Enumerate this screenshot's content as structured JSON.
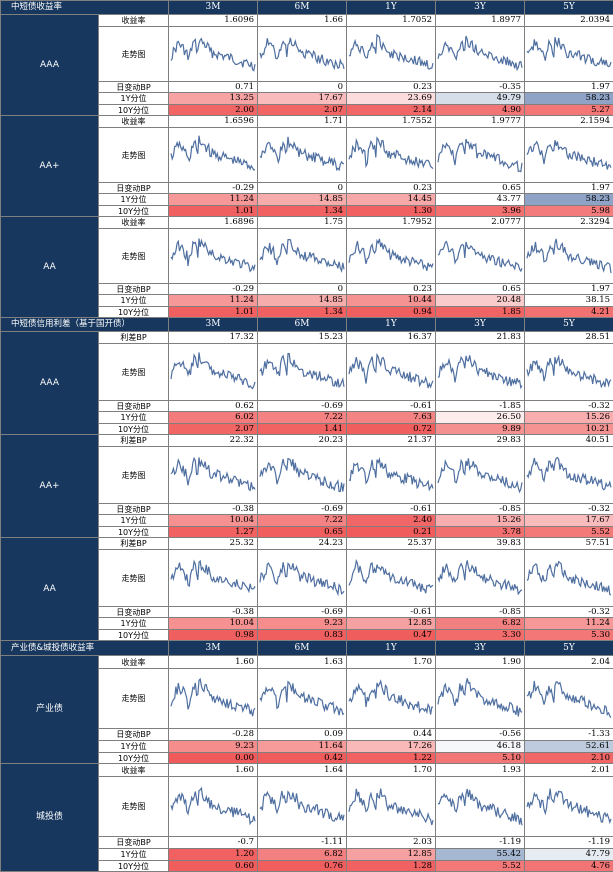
{
  "cols": [
    "3M",
    "6M",
    "1Y",
    "3Y",
    "5Y"
  ],
  "colors": {
    "header_bg": "#17375e",
    "line": "#4f6fa0",
    "red": "#f05a5a",
    "blue": "#7f97bd"
  },
  "sections": [
    {
      "title": "中短债收益率",
      "groups": [
        {
          "name": "AAA",
          "rows": [
            {
              "label": "收益率",
              "values": [
                "1.6096",
                "1.66",
                "1.7052",
                "1.8977",
                "2.0394"
              ]
            },
            {
              "label": "走势图",
              "spark": true
            },
            {
              "label": "日变动BP",
              "values": [
                "0.71",
                "0",
                "0.23",
                "-0.35",
                "1.97"
              ]
            },
            {
              "label": "1Y分位",
              "values": [
                "13.25",
                "17.67",
                "23.69",
                "49.79",
                "58.23"
              ]
            },
            {
              "label": "10Y分位",
              "values": [
                "2.00",
                "2.07",
                "2.14",
                "4.90",
                "5.27"
              ]
            }
          ]
        },
        {
          "name": "AA+",
          "rows": [
            {
              "label": "收益率",
              "values": [
                "1.6596",
                "1.71",
                "1.7552",
                "1.9777",
                "2.1594"
              ]
            },
            {
              "label": "走势图",
              "spark": true
            },
            {
              "label": "日变动BP",
              "values": [
                "-0.29",
                "0",
                "0.23",
                "0.65",
                "1.97"
              ]
            },
            {
              "label": "1Y分位",
              "values": [
                "11.24",
                "14.85",
                "14.45",
                "43.77",
                "58.23"
              ]
            },
            {
              "label": "10Y分位",
              "values": [
                "1.01",
                "1.34",
                "1.30",
                "3.96",
                "5.98"
              ]
            }
          ]
        },
        {
          "name": "AA",
          "rows": [
            {
              "label": "收益率",
              "values": [
                "1.6896",
                "1.75",
                "1.7952",
                "2.0777",
                "2.3294"
              ]
            },
            {
              "label": "走势图",
              "spark": true
            },
            {
              "label": "日变动BP",
              "values": [
                "-0.29",
                "0",
                "0.23",
                "0.65",
                "1.97"
              ]
            },
            {
              "label": "1Y分位",
              "values": [
                "11.24",
                "14.85",
                "10.44",
                "20.48",
                "38.15"
              ]
            },
            {
              "label": "10Y分位",
              "values": [
                "1.01",
                "1.34",
                "0.94",
                "1.85",
                "4.21"
              ]
            }
          ]
        }
      ]
    },
    {
      "title": "中短债信用利差（基于国开债）",
      "groups": [
        {
          "name": "AAA",
          "rows": [
            {
              "label": "利差BP",
              "values": [
                "17.32",
                "15.23",
                "16.37",
                "21.83",
                "28.51"
              ]
            },
            {
              "label": "走势图",
              "spark": true
            },
            {
              "label": "日变动BP",
              "values": [
                "0.62",
                "-0.69",
                "-0.61",
                "-1.85",
                "-0.32"
              ]
            },
            {
              "label": "1Y分位",
              "values": [
                "6.02",
                "7.22",
                "7.63",
                "26.50",
                "15.26"
              ]
            },
            {
              "label": "10Y分位",
              "values": [
                "2.07",
                "1.41",
                "0.72",
                "9.89",
                "10.21"
              ]
            }
          ]
        },
        {
          "name": "AA+",
          "rows": [
            {
              "label": "利差BP",
              "values": [
                "22.32",
                "20.23",
                "21.37",
                "29.83",
                "40.51"
              ]
            },
            {
              "label": "走势图",
              "spark": true
            },
            {
              "label": "日变动BP",
              "values": [
                "-0.38",
                "-0.69",
                "-0.61",
                "-0.85",
                "-0.32"
              ]
            },
            {
              "label": "1Y分位",
              "values": [
                "10.04",
                "7.22",
                "2.40",
                "15.26",
                "17.67"
              ]
            },
            {
              "label": "10Y分位",
              "values": [
                "1.27",
                "0.65",
                "0.21",
                "3.78",
                "5.52"
              ]
            }
          ]
        },
        {
          "name": "AA",
          "rows": [
            {
              "label": "利差BP",
              "values": [
                "25.32",
                "24.23",
                "25.37",
                "39.83",
                "57.51"
              ]
            },
            {
              "label": "走势图",
              "spark": true
            },
            {
              "label": "日变动BP",
              "values": [
                "-0.38",
                "-0.69",
                "-0.61",
                "-0.85",
                "-0.32"
              ]
            },
            {
              "label": "1Y分位",
              "values": [
                "10.04",
                "9.23",
                "12.85",
                "6.82",
                "11.24"
              ]
            },
            {
              "label": "10Y分位",
              "values": [
                "0.98",
                "0.83",
                "0.47",
                "3.30",
                "5.30"
              ]
            }
          ]
        }
      ]
    },
    {
      "title": "产业债&城投债收益率",
      "groups": [
        {
          "name": "产业债",
          "rows": [
            {
              "label": "收益率",
              "values": [
                "1.60",
                "1.63",
                "1.70",
                "1.90",
                "2.04"
              ]
            },
            {
              "label": "走势图",
              "spark": true
            },
            {
              "label": "日变动BP",
              "values": [
                "-0.28",
                "0.09",
                "0.44",
                "-0.56",
                "-1.33"
              ]
            },
            {
              "label": "1Y分位",
              "values": [
                "9.23",
                "11.64",
                "17.26",
                "46.18",
                "52.61"
              ]
            },
            {
              "label": "10Y分位",
              "values": [
                "0.00",
                "0.42",
                "1.22",
                "5.10",
                "2.10"
              ]
            }
          ]
        },
        {
          "name": "城投债",
          "rows": [
            {
              "label": "收益率",
              "values": [
                "1.60",
                "1.64",
                "1.70",
                "1.93",
                "2.01"
              ]
            },
            {
              "label": "走势图",
              "spark": true
            },
            {
              "label": "日变动BP",
              "values": [
                "-0.7",
                "-1.11",
                "2.03",
                "-1.19",
                "-1.19"
              ]
            },
            {
              "label": "1Y分位",
              "values": [
                "1.20",
                "6.82",
                "12.85",
                "55.42",
                "47.79"
              ]
            },
            {
              "label": "10Y分位",
              "values": [
                "0.60",
                "0.76",
                "1.28",
                "5.52",
                "4.76"
              ]
            }
          ]
        }
      ]
    }
  ]
}
